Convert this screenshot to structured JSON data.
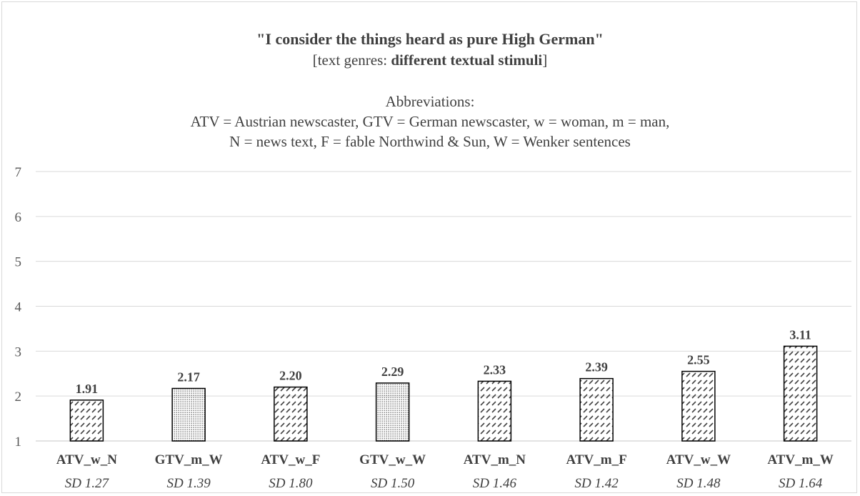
{
  "chart_data": {
    "type": "bar",
    "title": "\"I consider the things heard as pure High German\"",
    "subtitle_prefix": "[text genres: ",
    "subtitle_bold": "different textual stimuli",
    "subtitle_suffix": "]",
    "notes": [
      "Abbreviations:",
      "ATV = Austrian newscaster, GTV = German newscaster, w = woman, m = man,",
      "N = news text, F = fable Northwind & Sun, W = Wenker sentences"
    ],
    "categories": [
      "ATV_w_N",
      "GTV_m_W",
      "ATV_w_F",
      "GTV_w_W",
      "ATV_m_N",
      "ATV_m_F",
      "ATV_w_W",
      "ATV_m_W"
    ],
    "values": [
      1.91,
      2.17,
      2.2,
      2.29,
      2.33,
      2.39,
      2.55,
      3.11
    ],
    "value_labels": [
      "1.91",
      "2.17",
      "2.20",
      "2.29",
      "2.33",
      "2.39",
      "2.55",
      "3.11"
    ],
    "sd_labels": [
      "SD 1.27",
      "SD 1.39",
      "SD 1.80",
      "SD 1.50",
      "SD 1.46",
      "SD 1.42",
      "SD 1.48",
      "SD 1.64"
    ],
    "fill_patterns": [
      "hatch",
      "dots",
      "hatch",
      "dots",
      "hatch",
      "hatch",
      "hatch",
      "hatch"
    ],
    "ylim": [
      1,
      7
    ],
    "yticks": [
      1,
      2,
      3,
      4,
      5,
      6,
      7
    ],
    "grid": true,
    "legend": "none",
    "xlabel": "",
    "ylabel": "",
    "colors": {
      "bar_stroke": "#000000",
      "pattern": "#444444",
      "grid": "#d9d9d9",
      "text": "#404040"
    }
  }
}
